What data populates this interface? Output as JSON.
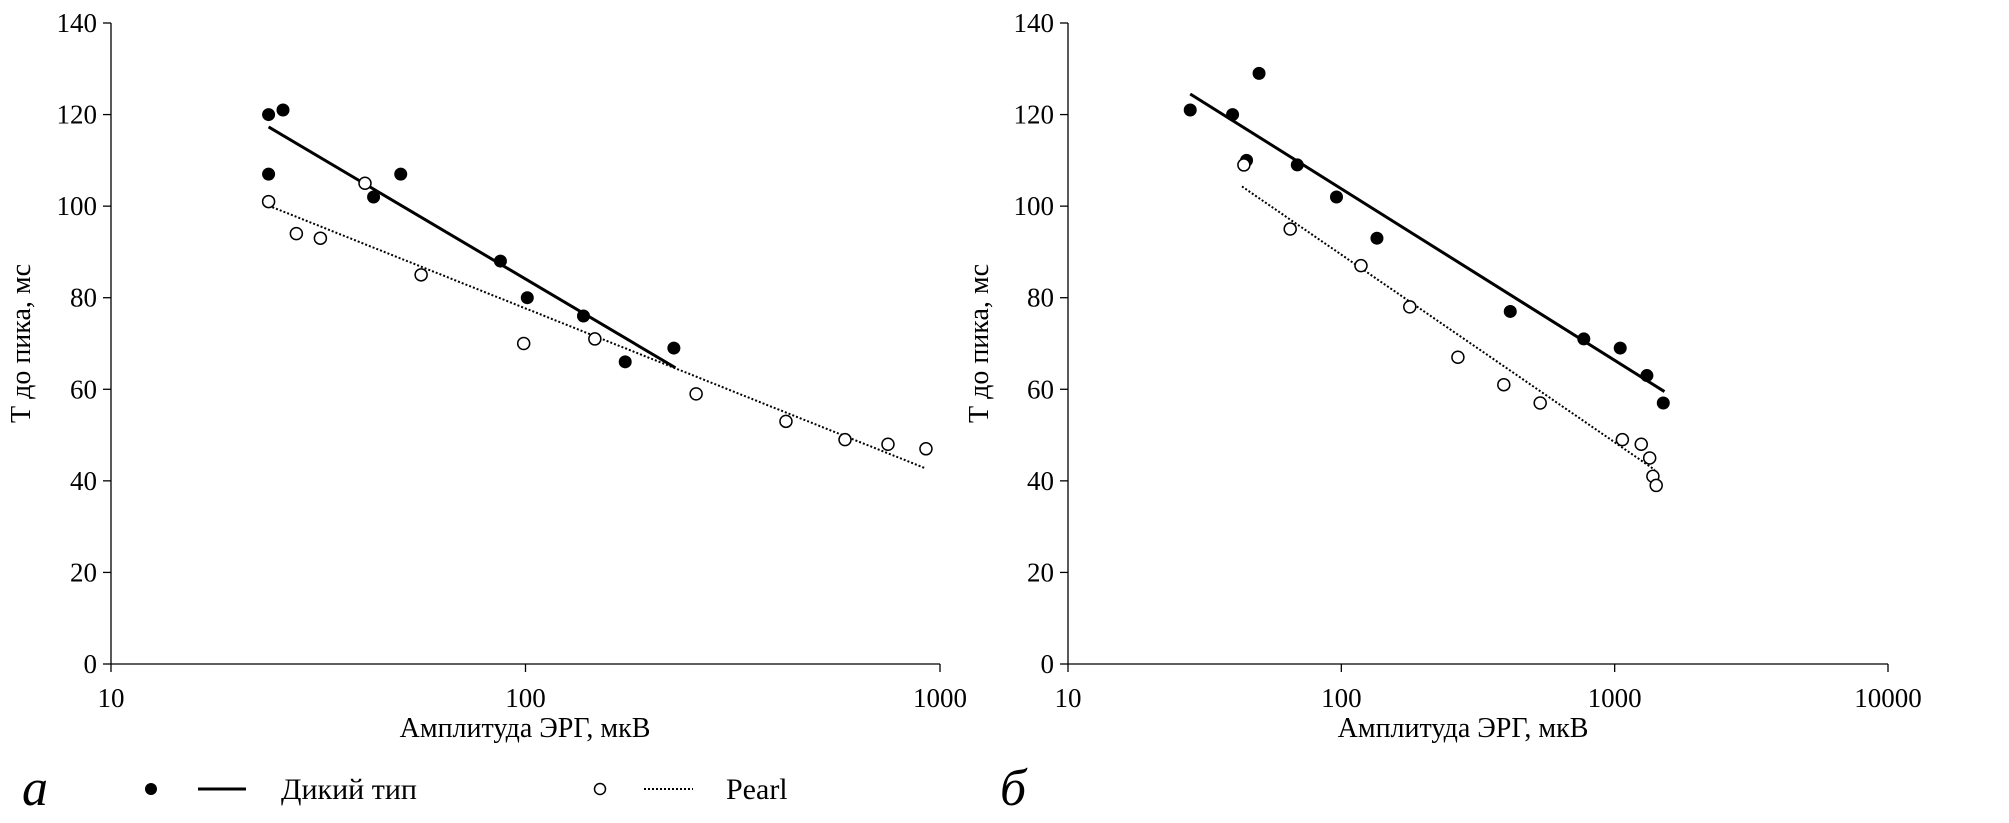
{
  "legend": {
    "wild_label": "Дикий тип",
    "pearl_label": "Pearl"
  },
  "chart_data": [
    {
      "type": "scatter",
      "panel_label": "а",
      "xlabel": "Амплитуда ЭРГ, мкВ",
      "ylabel": "Т до пика, мс",
      "xscale": "log",
      "xlim": [
        10,
        1000
      ],
      "ylim": [
        0,
        140
      ],
      "xticks": [
        10,
        100,
        1000
      ],
      "yticks": [
        0,
        20,
        40,
        60,
        80,
        100,
        120,
        140
      ],
      "grid": false,
      "legend_placement": "bottom",
      "series": [
        {
          "name": "Дикий тип",
          "marker": "filled",
          "points": [
            [
              24,
              120
            ],
            [
              26,
              121
            ],
            [
              24,
              107
            ],
            [
              43,
              102
            ],
            [
              50,
              107
            ],
            [
              87,
              88
            ],
            [
              101,
              80
            ],
            [
              138,
              76
            ],
            [
              174,
              66
            ],
            [
              228,
              69
            ]
          ],
          "trendline": {
            "style": "solid",
            "from": [
              24,
              117.3
            ],
            "to": [
              230,
              64.7
            ]
          }
        },
        {
          "name": "Pearl",
          "marker": "open",
          "points": [
            [
              24,
              101
            ],
            [
              28,
              94
            ],
            [
              32,
              93
            ],
            [
              41,
              105
            ],
            [
              56,
              85
            ],
            [
              99,
              70
            ],
            [
              147,
              71
            ],
            [
              258,
              59
            ],
            [
              425,
              53
            ],
            [
              590,
              49
            ],
            [
              749,
              48
            ],
            [
              925,
              47
            ]
          ],
          "trendline": {
            "style": "dotted",
            "from": [
              24,
              100.1
            ],
            "to": [
              925,
              42.7
            ]
          }
        }
      ]
    },
    {
      "type": "scatter",
      "panel_label": "б",
      "xlabel": "Амплитуда ЭРГ, мкВ",
      "ylabel": "Т до пика, мс",
      "xscale": "log",
      "xlim": [
        10,
        10000
      ],
      "ylim": [
        0,
        140
      ],
      "xticks": [
        10,
        100,
        1000,
        10000
      ],
      "yticks": [
        0,
        20,
        40,
        60,
        80,
        100,
        120,
        140
      ],
      "grid": false,
      "series": [
        {
          "name": "Дикий тип",
          "marker": "filled",
          "points": [
            [
              28,
              121
            ],
            [
              40,
              120
            ],
            [
              45,
              110
            ],
            [
              50,
              129
            ],
            [
              69,
              109
            ],
            [
              96,
              102
            ],
            [
              135,
              93
            ],
            [
              415,
              77
            ],
            [
              771,
              71
            ],
            [
              1048,
              69
            ],
            [
              1312,
              63
            ],
            [
              1506,
              57
            ]
          ],
          "trendline": {
            "style": "solid",
            "from": [
              28,
              124.5
            ],
            "to": [
              1521,
              59.5
            ]
          }
        },
        {
          "name": "Pearl",
          "marker": "open",
          "points": [
            [
              44,
              109
            ],
            [
              65,
              95
            ],
            [
              118,
              87
            ],
            [
              178,
              78
            ],
            [
              267,
              67
            ],
            [
              393,
              61
            ],
            [
              534,
              57
            ],
            [
              1067,
              49
            ],
            [
              1251,
              48
            ],
            [
              1343,
              45
            ],
            [
              1380,
              41
            ],
            [
              1419,
              39
            ]
          ],
          "trendline": {
            "style": "dotted",
            "from": [
              43.3,
              104.3
            ],
            "to": [
              1403,
              42.4
            ]
          }
        }
      ]
    }
  ]
}
